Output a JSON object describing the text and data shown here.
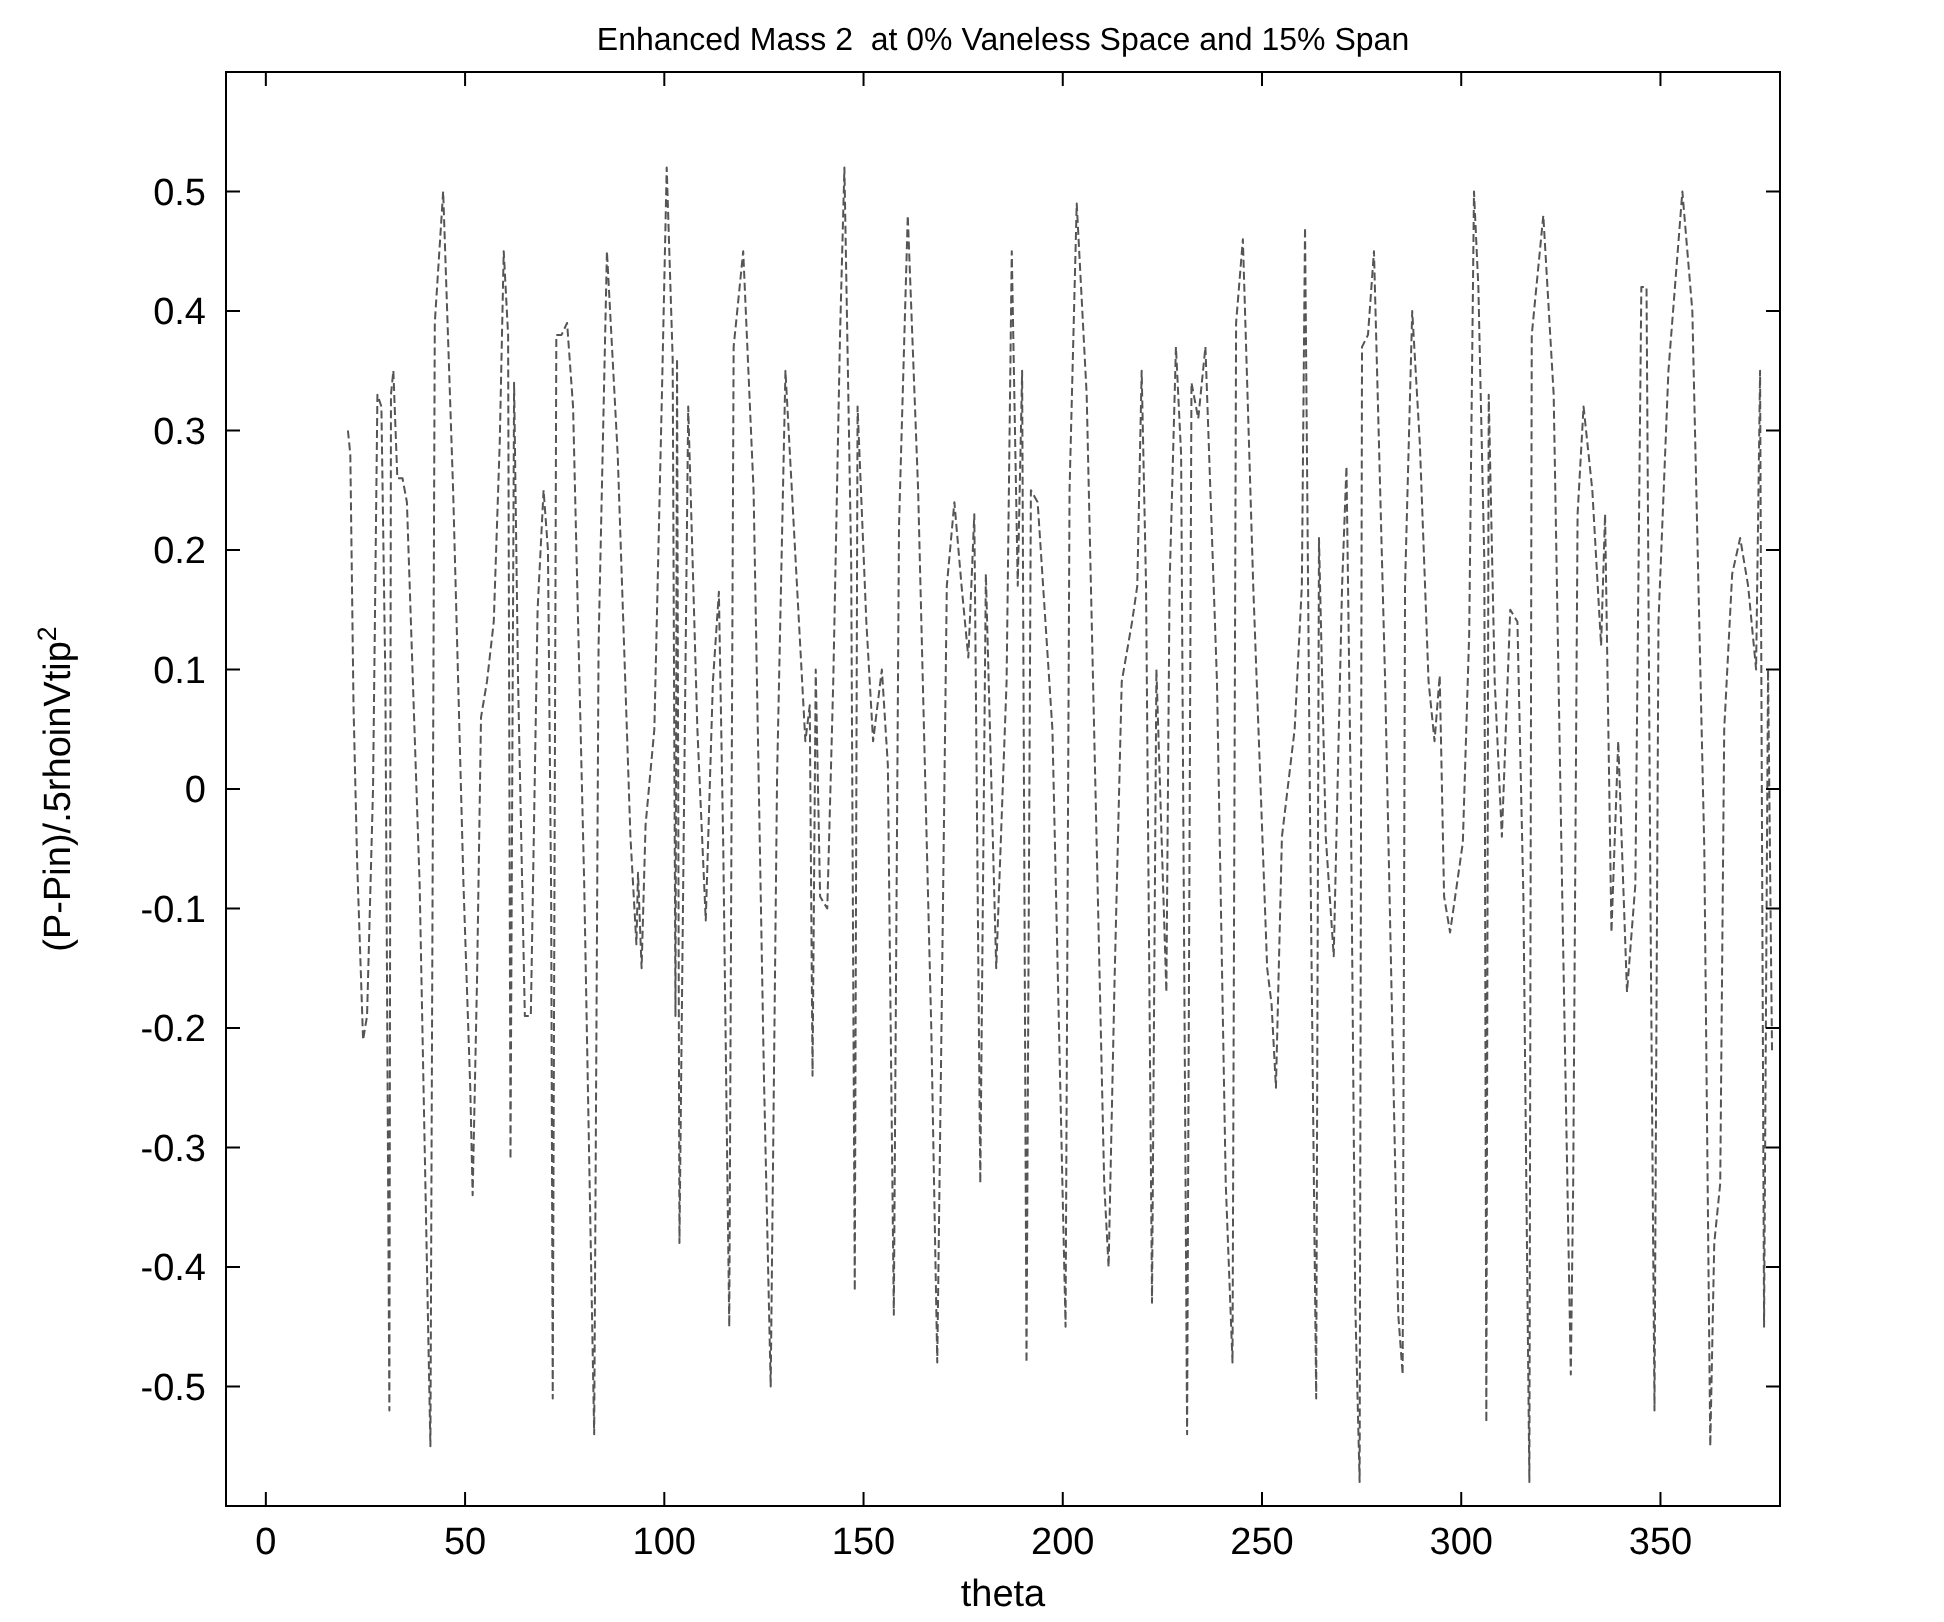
{
  "chart_data": {
    "type": "line",
    "title": "Enhanced Mass 2  at 0% Vaneless Space and 15% Span",
    "xlabel": "theta",
    "ylabel": "(P-Pin)/.5rhoinVtip$^{2}$",
    "xlim": [
      -10,
      380
    ],
    "xticks": [
      0,
      50,
      100,
      150,
      200,
      250,
      300,
      350
    ],
    "ylim": [
      -0.6,
      0.6
    ],
    "yticks": [
      -0.5,
      -0.4,
      -0.3,
      -0.2,
      -0.1,
      0,
      0.1,
      0.2,
      0.3,
      0.4,
      0.5
    ],
    "grid": false,
    "line_style": "dashed",
    "series": [
      {
        "color": "#555555",
        "x": [
          20.6,
          21.2,
          22,
          22.9,
          24.4,
          25.4,
          26.9,
          28,
          29,
          30,
          31,
          31.4,
          32,
          33,
          34.3,
          35.4,
          38.6,
          41.3,
          42.4,
          44.5,
          47,
          49.6,
          51.3,
          51.9,
          53,
          54,
          55.5,
          57.2,
          58.7,
          59.7,
          60.8,
          61.4,
          62.3,
          63.3,
          65,
          66.5,
          68.2,
          69.7,
          70.8,
          71.6,
          72,
          72.9,
          74.2,
          75.6,
          77.1,
          79.9,
          82.4,
          83.5,
          85.6,
          88.3,
          91.5,
          93,
          93.4,
          94.3,
          95.3,
          97.5,
          99.4,
          100.6,
          102.1,
          102.8,
          103.2,
          103.8,
          106,
          108.3,
          110.4,
          112.2,
          113.7,
          114.8,
          116.3,
          117.4,
          119.8,
          122.4,
          125,
          126.7,
          128.3,
          130.4,
          133.3,
          135.4,
          136.5,
          137.2,
          138,
          139.1,
          140.9,
          142.4,
          144.1,
          145.2,
          146.9,
          147.8,
          148.5,
          150.7,
          152.4,
          154.6,
          156.1,
          157.6,
          158.9,
          161.1,
          163.7,
          167,
          168.5,
          169.6,
          170.9,
          172.8,
          174.6,
          176.3,
          177.8,
          179.3,
          180.7,
          183.3,
          185.9,
          187.2,
          188.7,
          189.8,
          190.9,
          192,
          193.7,
          197.4,
          200.7,
          201.7,
          203.5,
          206,
          210.4,
          211.5,
          213,
          214.8,
          217.4,
          218.7,
          219.8,
          220.9,
          222.4,
          223.5,
          226,
          226.8,
          228.4,
          229.7,
          231.2,
          232.3,
          234,
          235.8,
          238.7,
          240.9,
          242.6,
          243.5,
          245.2,
          247.8,
          251.3,
          252.4,
          253.5,
          255,
          258.2,
          260,
          260.8,
          262.1,
          263.6,
          264.3,
          266,
          268,
          270.1,
          271.2,
          272.3,
          273.4,
          274.5,
          275.1,
          276.6,
          278.1,
          280.9,
          284.2,
          285.3,
          285.9,
          287.7,
          289.6,
          291.8,
          293.3,
          294.6,
          295.7,
          297.2,
          300.4,
          302,
          303.2,
          304.3,
          305.8,
          306.3,
          306.9,
          308.4,
          310.2,
          312.3,
          314.1,
          315.6,
          317.1,
          317.7,
          320.6,
          323.2,
          325.3,
          327.5,
          328.1,
          329.2,
          330.7,
          332.9,
          335.1,
          336.1,
          337.7,
          339.4,
          341.6,
          343.7,
          345.2,
          346.5,
          347.5,
          348.5,
          349.5,
          352,
          355.5,
          358,
          361,
          362.5,
          363.5,
          365,
          366,
          368,
          370,
          372,
          374,
          375,
          376,
          377,
          378
        ],
        "values": [
          0.3,
          0.28,
          0.07,
          -0.06,
          -0.21,
          -0.19,
          0,
          0.33,
          0.32,
          0.09,
          -0.52,
          0.33,
          0.35,
          0.26,
          0.26,
          0.24,
          -0.08,
          -0.55,
          0.39,
          0.5,
          0.25,
          -0.08,
          -0.25,
          -0.34,
          -0.16,
          0.06,
          0.09,
          0.14,
          0.29,
          0.45,
          0.38,
          -0.31,
          0.34,
          0.09,
          -0.19,
          -0.19,
          0.15,
          0.25,
          0.2,
          -0.09,
          -0.51,
          0.38,
          0.38,
          0.39,
          0.32,
          -0.08,
          -0.54,
          0.12,
          0.45,
          0.28,
          -0.04,
          -0.13,
          -0.07,
          -0.15,
          -0.03,
          0.05,
          0.33,
          0.52,
          0.36,
          -0.19,
          0.36,
          -0.38,
          0.32,
          0.05,
          -0.11,
          0.09,
          0.165,
          -0.05,
          -0.45,
          0.37,
          0.45,
          0.25,
          -0.24,
          -0.5,
          0.01,
          0.35,
          0.17,
          0.04,
          0.07,
          -0.24,
          0.1,
          -0.09,
          -0.1,
          0.09,
          0.38,
          0.52,
          0.19,
          -0.42,
          0.32,
          0.14,
          0.04,
          0.1,
          0.02,
          -0.44,
          0.22,
          0.48,
          0.25,
          -0.2,
          -0.48,
          -0.19,
          0.17,
          0.24,
          0.17,
          0.11,
          0.23,
          -0.33,
          0.18,
          -0.15,
          0.09,
          0.45,
          0.17,
          0.35,
          -0.48,
          0.25,
          0.24,
          0.05,
          -0.45,
          0.25,
          0.49,
          0.33,
          -0.33,
          -0.4,
          -0.16,
          0.09,
          0.14,
          0.17,
          0.35,
          0.17,
          -0.43,
          0.1,
          -0.17,
          0.17,
          0.37,
          0.28,
          -0.54,
          0.34,
          0.31,
          0.37,
          0.09,
          -0.33,
          -0.48,
          0.39,
          0.46,
          0.17,
          -0.15,
          -0.18,
          -0.25,
          -0.04,
          0.05,
          0.17,
          0.47,
          -0.04,
          -0.51,
          0.21,
          -0.04,
          -0.14,
          0.17,
          0.27,
          -0.01,
          -0.43,
          -0.58,
          0.37,
          0.38,
          0.45,
          0.09,
          -0.44,
          -0.49,
          0.17,
          0.4,
          0.29,
          0.09,
          0.04,
          0.095,
          -0.09,
          -0.12,
          -0.045,
          0.13,
          0.5,
          0.42,
          0.19,
          -0.53,
          0.33,
          0.09,
          -0.04,
          0.15,
          0.14,
          -0.09,
          -0.58,
          0.38,
          0.48,
          0.33,
          -0.08,
          -0.49,
          -0.33,
          0.23,
          0.32,
          0.25,
          0.12,
          0.23,
          -0.12,
          0.04,
          -0.17,
          -0.08,
          0.42,
          0.42,
          -0.1,
          -0.52,
          0.14,
          0.35,
          0.5,
          0.4,
          -0.05,
          -0.55,
          -0.38,
          -0.33,
          0.05,
          0.18,
          0.21,
          0.17,
          0.1,
          0.35,
          -0.45,
          0.1,
          -0.22
        ]
      }
    ]
  }
}
